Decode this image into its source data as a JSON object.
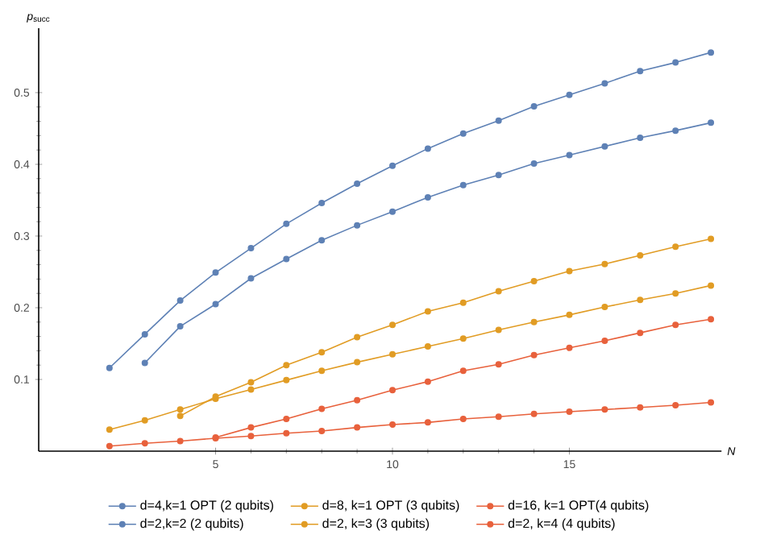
{
  "chart_data": {
    "type": "line",
    "xlabel": "*N*",
    "ylabel": "*p*$_{succ}$",
    "xlim": [
      0,
      19.3
    ],
    "ylim": [
      0,
      0.59
    ],
    "xticks": [
      5,
      10,
      15
    ],
    "yticks": [
      0.1,
      0.2,
      0.3,
      0.4,
      0.5
    ],
    "legend": "bottom",
    "marker": "circle",
    "grid": false,
    "series": [
      {
        "name": "d=4,k=1 OPT (2 qubits)",
        "color": "#5e81b5",
        "x": [
          2,
          3,
          4,
          5,
          6,
          7,
          8,
          9,
          10,
          11,
          12,
          13,
          14,
          15,
          16,
          17,
          18,
          19
        ],
        "values": [
          0.116,
          0.163,
          0.21,
          0.249,
          0.283,
          0.317,
          0.346,
          0.373,
          0.398,
          0.422,
          0.443,
          0.461,
          0.481,
          0.497,
          0.513,
          0.53,
          0.542,
          0.556
        ]
      },
      {
        "name": "d=8, k=1 OPT (3 qubits)",
        "color": "#e19c24",
        "x": [
          2,
          3,
          4,
          5,
          6,
          7,
          8,
          9,
          10,
          11,
          12,
          13,
          14,
          15,
          16,
          17,
          18,
          19
        ],
        "values": [
          0.03,
          0.043,
          0.058,
          0.073,
          0.086,
          0.099,
          0.112,
          0.124,
          0.135,
          0.146,
          0.157,
          0.169,
          0.18,
          0.19,
          0.201,
          0.211,
          0.22,
          0.231
        ]
      },
      {
        "name": "d=16, k=1 OPT(4 qubits)",
        "color": "#e8613c",
        "x": [
          2,
          3,
          4,
          5,
          6,
          7,
          8,
          9,
          10,
          11,
          12,
          13,
          14,
          15,
          16,
          17,
          18,
          19
        ],
        "values": [
          0.007,
          0.011,
          0.014,
          0.018,
          0.021,
          0.025,
          0.028,
          0.033,
          0.037,
          0.04,
          0.045,
          0.048,
          0.052,
          0.055,
          0.058,
          0.061,
          0.064,
          0.068
        ]
      },
      {
        "name": "d=2,k=2 (2 qubits)",
        "color": "#5e81b5",
        "x": [
          3,
          4,
          5,
          6,
          7,
          8,
          9,
          10,
          11,
          12,
          13,
          14,
          15,
          16,
          17,
          18,
          19
        ],
        "values": [
          0.123,
          0.174,
          0.205,
          0.241,
          0.268,
          0.294,
          0.315,
          0.334,
          0.354,
          0.371,
          0.385,
          0.401,
          0.413,
          0.425,
          0.437,
          0.447,
          0.458
        ]
      },
      {
        "name": "d=2, k=3 (3 qubits)",
        "color": "#e19c24",
        "x": [
          4,
          5,
          6,
          7,
          8,
          9,
          10,
          11,
          12,
          13,
          14,
          15,
          16,
          17,
          18,
          19
        ],
        "values": [
          0.049,
          0.076,
          0.096,
          0.12,
          0.138,
          0.159,
          0.176,
          0.195,
          0.207,
          0.223,
          0.237,
          0.251,
          0.261,
          0.273,
          0.285,
          0.296
        ]
      },
      {
        "name": "d=2, k=4 (4 qubits)",
        "color": "#e8613c",
        "x": [
          5,
          6,
          7,
          8,
          9,
          10,
          11,
          12,
          13,
          14,
          15,
          16,
          17,
          18,
          19
        ],
        "values": [
          0.019,
          0.033,
          0.045,
          0.059,
          0.071,
          0.085,
          0.097,
          0.112,
          0.121,
          0.134,
          0.144,
          0.154,
          0.165,
          0.176,
          0.184
        ]
      }
    ]
  }
}
